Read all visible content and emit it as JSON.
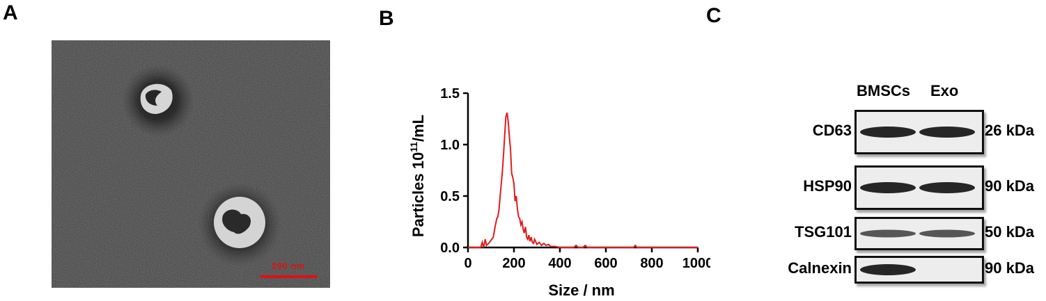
{
  "panels": {
    "a": {
      "letter": "A",
      "scale_bar_label": "200 nm"
    },
    "b": {
      "letter": "B"
    },
    "c": {
      "letter": "C",
      "lanes": [
        "BMSCs",
        "Exo"
      ],
      "rows": [
        {
          "protein": "CD63",
          "mw": "26 kDa",
          "bmsc_band": "strong",
          "exo_band": "strong"
        },
        {
          "protein": "HSP90",
          "mw": "90 kDa",
          "bmsc_band": "strong",
          "exo_band": "strong"
        },
        {
          "protein": "TSG101",
          "mw": "50 kDa",
          "bmsc_band": "weak",
          "exo_band": "weak"
        },
        {
          "protein": "Calnexin",
          "mw": "90 kDa",
          "bmsc_band": "strong",
          "exo_band": "none"
        }
      ]
    }
  },
  "colors": {
    "line": "#e31a1c",
    "scale_bar": "#e01010",
    "axis": "#000000"
  },
  "chart_data": {
    "type": "line",
    "xlabel": "Size / nm",
    "ylabel_main": "Particles 10",
    "ylabel_sup": "11",
    "ylabel_unit": "/mL",
    "xlim": [
      0,
      1000
    ],
    "ylim": [
      0,
      1.5
    ],
    "xticks": [
      "0",
      "200",
      "400",
      "600",
      "800",
      "1000"
    ],
    "yticks": [
      "0.0",
      "0.5",
      "1.0",
      "1.5"
    ],
    "grid": false,
    "series": [
      {
        "x": [
          0,
          55,
          62,
          68,
          75,
          80,
          90,
          100,
          110,
          118,
          125,
          130,
          135,
          140,
          145,
          150,
          155,
          160,
          165,
          170,
          175,
          180,
          185,
          190,
          195,
          200,
          205,
          210,
          215,
          220,
          225,
          230,
          235,
          240,
          245,
          250,
          255,
          260,
          265,
          270,
          275,
          280,
          285,
          290,
          300,
          310,
          320,
          330,
          340,
          350,
          360,
          380,
          400,
          460,
          470,
          480,
          500,
          510,
          520,
          720,
          728,
          736,
          1000
        ],
        "y": [
          0,
          0,
          0.05,
          0,
          0.08,
          0.02,
          0.04,
          0.07,
          0.1,
          0.2,
          0.28,
          0.3,
          0.37,
          0.5,
          0.62,
          0.75,
          0.92,
          1.1,
          1.27,
          1.31,
          1.22,
          1.08,
          0.95,
          0.72,
          0.68,
          0.62,
          0.45,
          0.5,
          0.38,
          0.3,
          0.28,
          0.22,
          0.25,
          0.18,
          0.14,
          0.2,
          0.1,
          0.08,
          0.12,
          0.06,
          0.1,
          0.05,
          0.04,
          0.08,
          0.03,
          0.05,
          0.02,
          0.04,
          0.02,
          0.03,
          0.01,
          0.01,
          0,
          0,
          0.02,
          0,
          0,
          0.02,
          0,
          0,
          0.02,
          0,
          0
        ]
      }
    ]
  }
}
